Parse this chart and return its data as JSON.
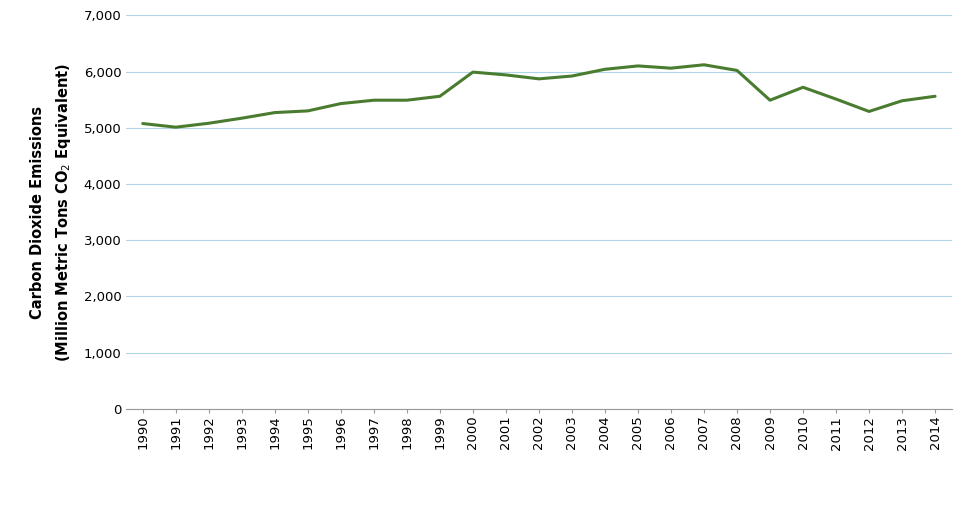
{
  "years": [
    1990,
    1991,
    1992,
    1993,
    1994,
    1995,
    1996,
    1997,
    1998,
    1999,
    2000,
    2001,
    2002,
    2003,
    2004,
    2005,
    2006,
    2007,
    2008,
    2009,
    2010,
    2011,
    2012,
    2013,
    2014
  ],
  "values": [
    5075,
    5010,
    5080,
    5170,
    5270,
    5300,
    5430,
    5490,
    5490,
    5560,
    5990,
    5940,
    5870,
    5920,
    6040,
    6100,
    6060,
    6120,
    6020,
    5490,
    5720,
    5510,
    5290,
    5480,
    5560
  ],
  "line_color": "#4a7c2f",
  "line_width": 2.2,
  "background_color": "#ffffff",
  "grid_color": "#aed6e8",
  "ylim": [
    0,
    7000
  ],
  "yticks": [
    0,
    1000,
    2000,
    3000,
    4000,
    5000,
    6000,
    7000
  ],
  "tick_fontsize": 9.5,
  "ylabel_fontsize": 10.5,
  "ylabel_fontweight": "bold"
}
